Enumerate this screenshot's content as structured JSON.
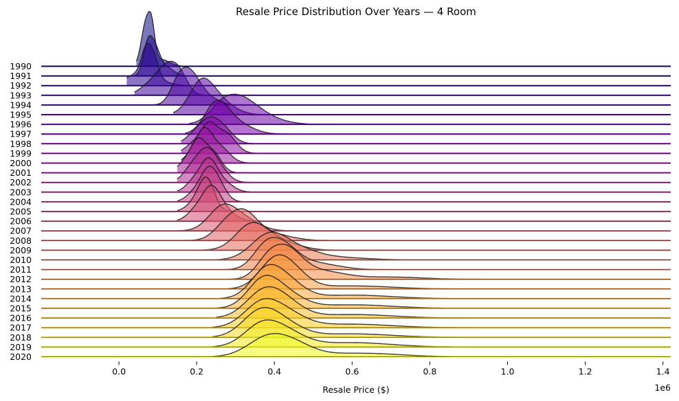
{
  "chart_data": {
    "type": "ridgeline",
    "title": "Resale Price Distribution Over Years — 4 Room",
    "xlabel": "Resale Price ($)",
    "x_offset_label": "1e6",
    "xlim": [
      -0.2,
      1.42
    ],
    "x_ticks": [
      0.0,
      0.2,
      0.4,
      0.6,
      0.8,
      1.0,
      1.2,
      1.4
    ],
    "x_tick_labels": [
      "0.0",
      "0.2",
      "0.4",
      "0.6",
      "0.8",
      "1.0",
      "1.2",
      "1.4"
    ],
    "x_unit_multiplier": 1000000,
    "colormap": "plasma",
    "grid": false,
    "legend": "none",
    "series": [
      {
        "year": "1990",
        "x_min": 0.045,
        "peaks": [
          [
            0.07,
            0.012,
            1.0
          ],
          [
            0.085,
            0.008,
            0.6
          ],
          [
            0.11,
            0.02,
            0.15
          ]
        ]
      },
      {
        "year": "1991",
        "x_min": 0.04,
        "peaks": [
          [
            0.075,
            0.012,
            0.75
          ],
          [
            0.095,
            0.012,
            0.45
          ],
          [
            0.12,
            0.02,
            0.2
          ]
        ]
      },
      {
        "year": "1992",
        "x_min": 0.02,
        "peaks": [
          [
            0.07,
            0.012,
            0.55
          ],
          [
            0.09,
            0.012,
            0.4
          ],
          [
            0.06,
            0.04,
            0.3
          ]
        ]
      },
      {
        "year": "1993",
        "x_min": 0.04,
        "peaks": [
          [
            0.13,
            0.025,
            0.55
          ],
          [
            0.09,
            0.03,
            0.3
          ],
          [
            0.16,
            0.02,
            0.3
          ]
        ]
      },
      {
        "year": "1994",
        "x_min": 0.08,
        "peaks": [
          [
            0.18,
            0.025,
            0.65
          ],
          [
            0.15,
            0.02,
            0.35
          ],
          [
            0.22,
            0.03,
            0.2
          ]
        ]
      },
      {
        "year": "1995",
        "x_min": 0.14,
        "peaks": [
          [
            0.21,
            0.03,
            0.6
          ],
          [
            0.25,
            0.04,
            0.35
          ]
        ]
      },
      {
        "year": "1996",
        "x_min": 0.18,
        "peaks": [
          [
            0.305,
            0.045,
            0.55
          ],
          [
            0.26,
            0.03,
            0.2
          ],
          [
            0.37,
            0.05,
            0.15
          ]
        ]
      },
      {
        "year": "1997",
        "x_min": 0.17,
        "peaks": [
          [
            0.25,
            0.03,
            0.65
          ],
          [
            0.3,
            0.04,
            0.25
          ]
        ]
      },
      {
        "year": "1998",
        "x_min": 0.16,
        "peaks": [
          [
            0.23,
            0.025,
            0.5
          ],
          [
            0.27,
            0.025,
            0.3
          ],
          [
            0.19,
            0.02,
            0.15
          ]
        ]
      },
      {
        "year": "1999",
        "x_min": 0.16,
        "peaks": [
          [
            0.23,
            0.02,
            0.6
          ],
          [
            0.275,
            0.025,
            0.45
          ],
          [
            0.19,
            0.02,
            0.2
          ]
        ]
      },
      {
        "year": "2000",
        "x_min": 0.16,
        "peaks": [
          [
            0.22,
            0.02,
            0.65
          ],
          [
            0.26,
            0.025,
            0.35
          ],
          [
            0.19,
            0.02,
            0.2
          ]
        ]
      },
      {
        "year": "2001",
        "x_min": 0.15,
        "peaks": [
          [
            0.205,
            0.02,
            0.7
          ],
          [
            0.245,
            0.02,
            0.4
          ],
          [
            0.17,
            0.02,
            0.2
          ]
        ]
      },
      {
        "year": "2002",
        "x_min": 0.15,
        "peaks": [
          [
            0.22,
            0.025,
            0.65
          ],
          [
            0.255,
            0.025,
            0.3
          ],
          [
            0.18,
            0.02,
            0.2
          ]
        ]
      },
      {
        "year": "2003",
        "x_min": 0.15,
        "peaks": [
          [
            0.23,
            0.022,
            0.7
          ],
          [
            0.19,
            0.02,
            0.2
          ],
          [
            0.27,
            0.025,
            0.2
          ]
        ]
      },
      {
        "year": "2004",
        "x_min": 0.15,
        "peaks": [
          [
            0.23,
            0.022,
            0.7
          ],
          [
            0.26,
            0.02,
            0.25
          ],
          [
            0.19,
            0.02,
            0.15
          ]
        ]
      },
      {
        "year": "2005",
        "x_min": 0.15,
        "peaks": [
          [
            0.225,
            0.02,
            0.75
          ],
          [
            0.19,
            0.02,
            0.15
          ]
        ]
      },
      {
        "year": "2006",
        "x_min": 0.15,
        "peaks": [
          [
            0.235,
            0.025,
            0.7
          ],
          [
            0.27,
            0.03,
            0.2
          ],
          [
            0.19,
            0.02,
            0.15
          ]
        ]
      },
      {
        "year": "2007",
        "x_min": 0.15,
        "peaks": [
          [
            0.265,
            0.035,
            0.5
          ],
          [
            0.32,
            0.04,
            0.25
          ]
        ]
      },
      {
        "year": "2008",
        "x_min": 0.17,
        "peaks": [
          [
            0.32,
            0.035,
            0.6
          ],
          [
            0.27,
            0.03,
            0.25
          ],
          [
            0.39,
            0.05,
            0.15
          ]
        ]
      },
      {
        "year": "2009",
        "x_min": 0.19,
        "peaks": [
          [
            0.34,
            0.04,
            0.55
          ],
          [
            0.41,
            0.05,
            0.2
          ]
        ]
      },
      {
        "year": "2010",
        "x_min": 0.24,
        "peaks": [
          [
            0.385,
            0.045,
            0.55
          ],
          [
            0.46,
            0.05,
            0.2
          ],
          [
            0.55,
            0.08,
            0.06
          ]
        ]
      },
      {
        "year": "2011",
        "x_min": 0.27,
        "peaks": [
          [
            0.415,
            0.04,
            0.55
          ],
          [
            0.37,
            0.03,
            0.3
          ],
          [
            0.5,
            0.06,
            0.15
          ]
        ]
      },
      {
        "year": "2012",
        "x_min": 0.28,
        "peaks": [
          [
            0.43,
            0.04,
            0.65
          ],
          [
            0.38,
            0.03,
            0.3
          ],
          [
            0.52,
            0.06,
            0.18
          ],
          [
            0.7,
            0.08,
            0.05
          ]
        ]
      },
      {
        "year": "2013",
        "x_min": 0.28,
        "peaks": [
          [
            0.4,
            0.04,
            0.6
          ],
          [
            0.45,
            0.04,
            0.3
          ],
          [
            0.6,
            0.1,
            0.07
          ]
        ]
      },
      {
        "year": "2014",
        "x_min": 0.26,
        "peaks": [
          [
            0.38,
            0.04,
            0.65
          ],
          [
            0.44,
            0.04,
            0.3
          ],
          [
            0.6,
            0.1,
            0.08
          ]
        ]
      },
      {
        "year": "2015",
        "x_min": 0.25,
        "peaks": [
          [
            0.37,
            0.04,
            0.6
          ],
          [
            0.43,
            0.045,
            0.3
          ],
          [
            0.6,
            0.1,
            0.08
          ]
        ]
      },
      {
        "year": "2016",
        "x_min": 0.25,
        "peaks": [
          [
            0.37,
            0.045,
            0.55
          ],
          [
            0.43,
            0.045,
            0.3
          ],
          [
            0.6,
            0.1,
            0.08
          ]
        ]
      },
      {
        "year": "2017",
        "x_min": 0.24,
        "peaks": [
          [
            0.365,
            0.045,
            0.5
          ],
          [
            0.43,
            0.05,
            0.3
          ],
          [
            0.6,
            0.1,
            0.08
          ]
        ]
      },
      {
        "year": "2018",
        "x_min": 0.24,
        "peaks": [
          [
            0.36,
            0.045,
            0.5
          ],
          [
            0.42,
            0.05,
            0.3
          ],
          [
            0.6,
            0.1,
            0.08
          ]
        ]
      },
      {
        "year": "2019",
        "x_min": 0.24,
        "peaks": [
          [
            0.365,
            0.045,
            0.45
          ],
          [
            0.43,
            0.05,
            0.3
          ],
          [
            0.6,
            0.1,
            0.1
          ]
        ]
      },
      {
        "year": "2020",
        "x_min": 0.24,
        "peaks": [
          [
            0.38,
            0.05,
            0.4
          ],
          [
            0.45,
            0.05,
            0.25
          ],
          [
            0.62,
            0.1,
            0.08
          ]
        ]
      }
    ]
  }
}
